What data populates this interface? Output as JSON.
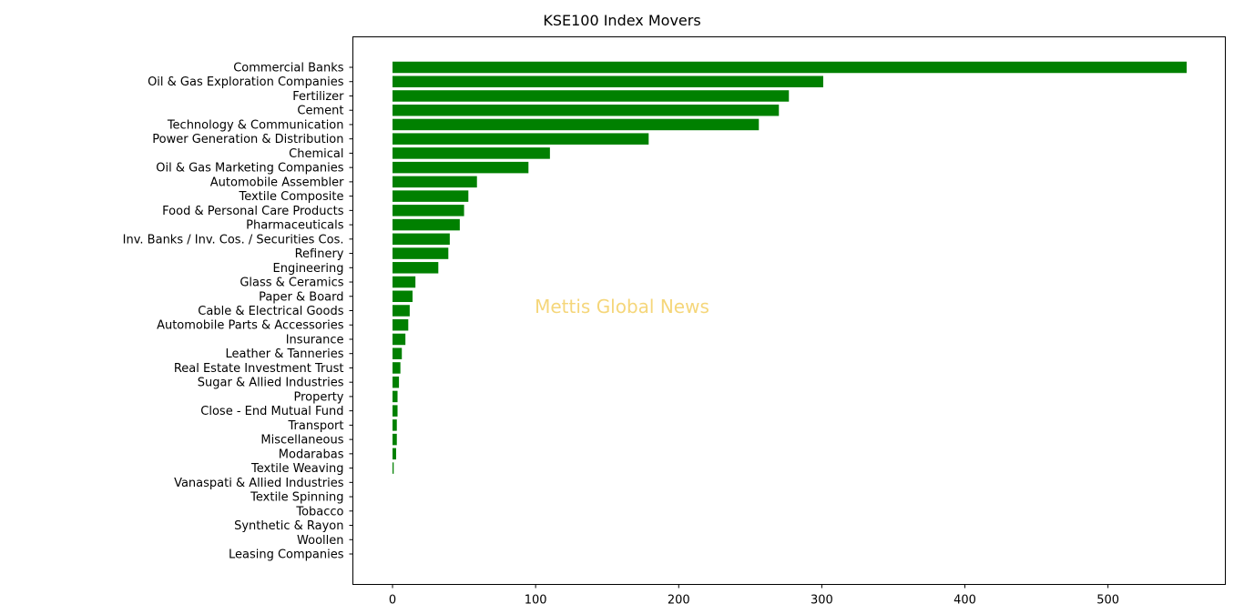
{
  "chart_data": {
    "type": "bar",
    "orientation": "horizontal",
    "title": "KSE100 Index Movers",
    "xlabel": "",
    "ylabel": "",
    "xlim": [
      -27.7,
      582
    ],
    "xticks": [
      0,
      100,
      200,
      300,
      400,
      500
    ],
    "grid": false,
    "legend": "none",
    "categories": [
      "Commercial Banks",
      "Oil & Gas Exploration Companies",
      "Fertilizer",
      "Cement",
      "Technology & Communication",
      "Power Generation & Distribution",
      "Chemical",
      "Oil & Gas Marketing Companies",
      "Automobile Assembler",
      "Textile Composite",
      "Food & Personal Care Products",
      "Pharmaceuticals",
      "Inv. Banks / Inv. Cos. / Securities Cos.",
      "Refinery",
      "Engineering",
      "Glass & Ceramics",
      "Paper & Board",
      "Cable & Electrical Goods",
      "Automobile Parts & Accessories",
      "Insurance",
      "Leather & Tanneries",
      "Real Estate Investment Trust",
      "Sugar & Allied Industries",
      "Property",
      "Close - End Mutual Fund",
      "Transport",
      "Miscellaneous",
      "Modarabas",
      "Textile Weaving",
      "Vanaspati & Allied Industries",
      "Textile Spinning",
      "Tobacco",
      "Synthetic & Rayon",
      "Woollen",
      "Leasing Companies"
    ],
    "values": [
      555,
      301,
      277,
      270,
      256,
      179,
      110,
      95,
      59,
      53,
      50,
      47,
      40,
      39,
      32,
      16,
      14,
      12,
      11,
      9,
      6.5,
      5.5,
      4.5,
      3.5,
      3.5,
      3,
      3,
      2.5,
      0.8,
      0,
      0,
      0,
      0,
      0,
      0
    ],
    "bar_color": "#008000",
    "watermark": "Mettis Global News",
    "watermark_color": "#f5d67a"
  }
}
